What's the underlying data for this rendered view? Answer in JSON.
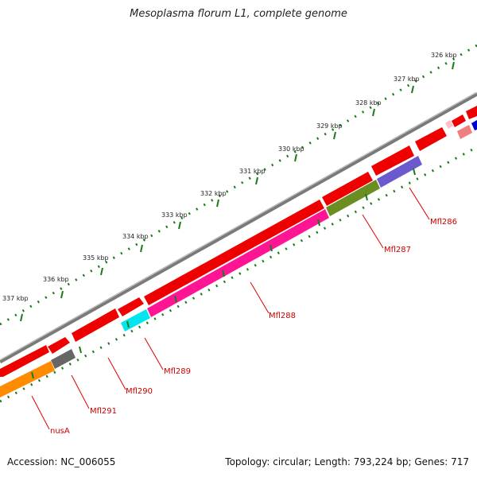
{
  "title": "Mesoplasma florum L1, complete genome",
  "footer": {
    "accession": "Accession: NC_006055",
    "summary": "Topology: circular; Length: 793,224 bp; Genes: 717"
  },
  "scale_labels": [
    "326 kbp",
    "327 kbp",
    "328 kbp",
    "329 kbp",
    "330 kbp",
    "331 kbp",
    "332 kbp",
    "333 kbp",
    "334 kbp",
    "335 kbp",
    "336 kbp",
    "337 kbp"
  ],
  "gene_labels": [
    "Mfl286",
    "Mfl287",
    "Mfl288",
    "Mfl289",
    "Mfl290",
    "Mfl291",
    "nusA"
  ],
  "colors": {
    "backbone": "#7a7a7a",
    "forward_genes": "#ee0000",
    "tick_dots": "#1a7a1a",
    "label_text": "#cc0000",
    "Mfl286": "#6a5acd",
    "Mfl287": "#6b8e23",
    "Mfl288": "#ff1493",
    "Mfl289": "#00e5ee",
    "Mfl290": "#666666",
    "nusA": "#ff8c00",
    "small_feature": "#f08080",
    "edge_feature": "#0000cc"
  }
}
